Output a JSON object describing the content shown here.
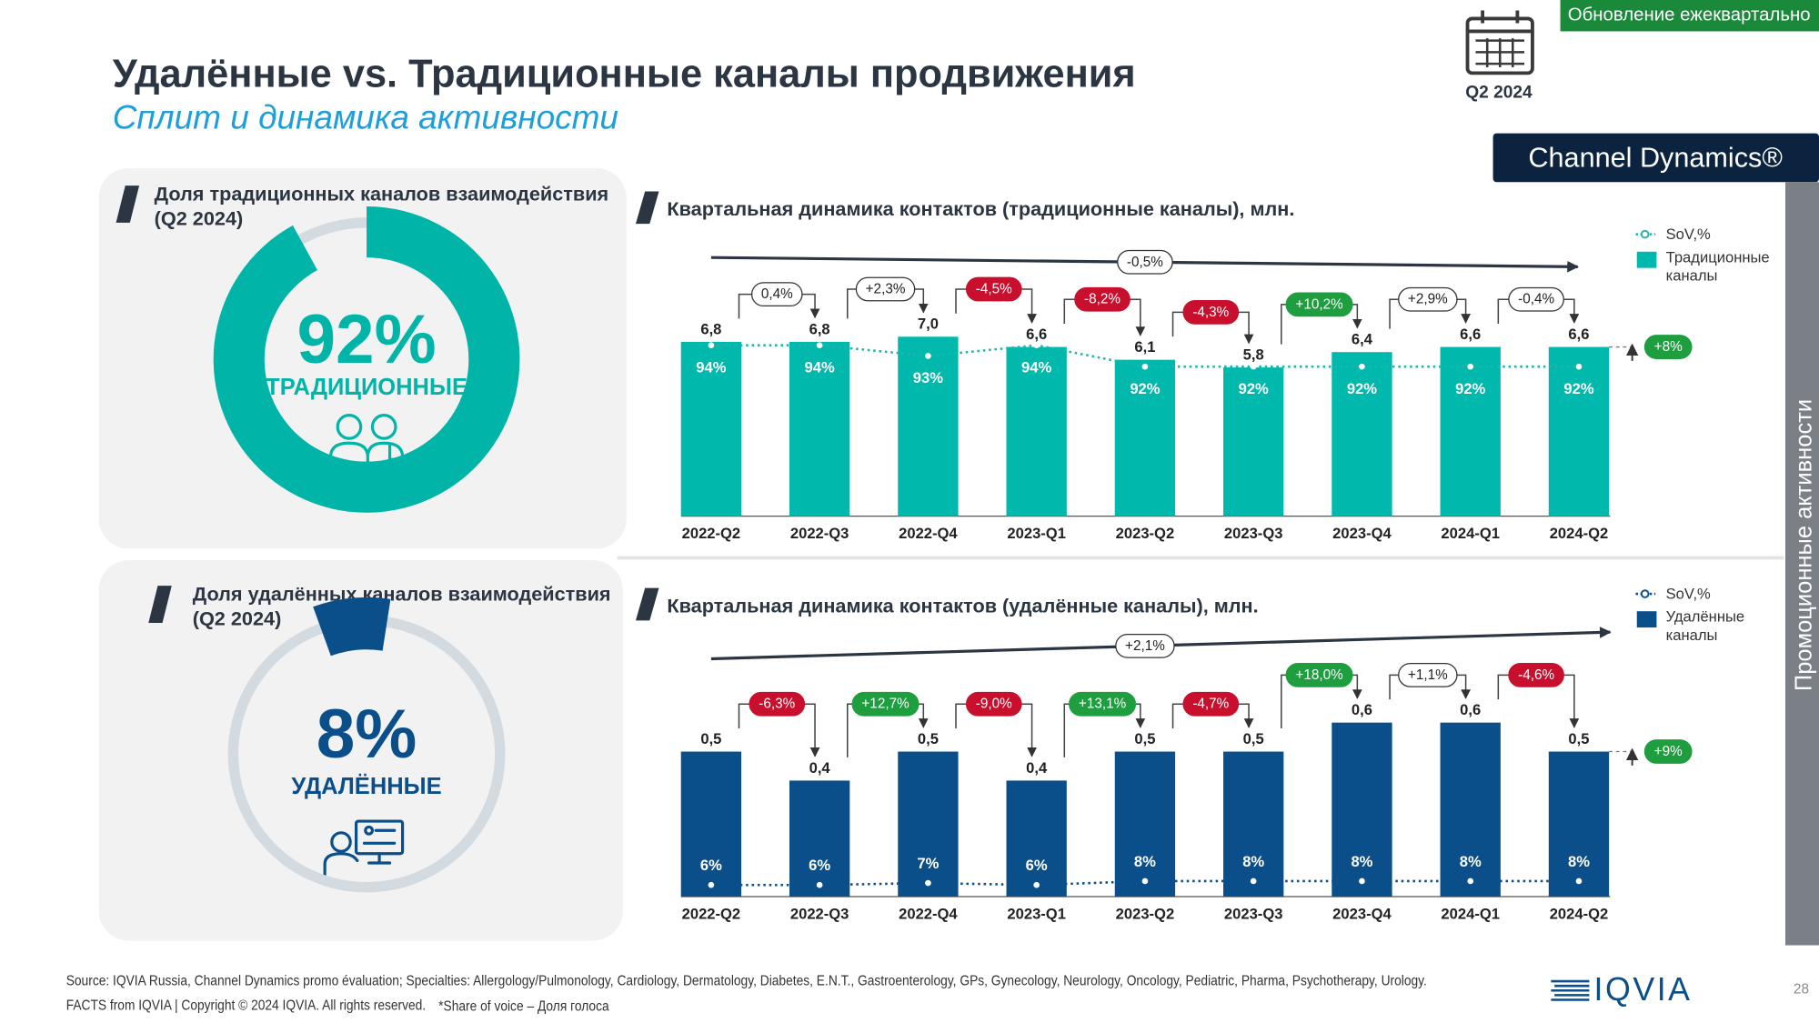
{
  "header": {
    "title": "Удалённые vs. Традиционные каналы продвижения",
    "subtitle": "Сплит и динамика активности",
    "update_badge": "Обновление ежеквартально",
    "period": "Q2 2024",
    "product": "Channel Dynamics®"
  },
  "side_label": "Промоционные активности",
  "chart_data": [
    {
      "type": "donut",
      "title": "Доля традиционных каналов взаимодействия",
      "period": "(Q2 2024)",
      "values": [
        92
      ],
      "value_labels": [
        "92%"
      ],
      "label": "ТРАДИЦИОННЫЕ",
      "color": "#00b5a8",
      "track_color": "#d3dbe1"
    },
    {
      "type": "donut",
      "title": "Доля удалённых каналов взаимодействия",
      "period": "(Q2 2024)",
      "values": [
        8
      ],
      "value_labels": [
        "8%"
      ],
      "label": "УДАЛЁННЫЕ",
      "color": "#0b4f8a",
      "track_color": "#d3dbe1"
    },
    {
      "type": "bar",
      "title": "Квартальная динамика контактов (традиционные каналы), млн.",
      "categories": [
        "2022-Q2",
        "2022-Q3",
        "2022-Q4",
        "2023-Q1",
        "2023-Q2",
        "2023-Q3",
        "2023-Q4",
        "2024-Q1",
        "2024-Q2"
      ],
      "series": [
        {
          "name": "SoV,%",
          "type": "line",
          "axis": "y2",
          "color": "#1fb5a8",
          "values": [
            94,
            94,
            93,
            94,
            92,
            92,
            92,
            92,
            92
          ],
          "value_labels": [
            "94%",
            "94%",
            "93%",
            "94%",
            "92%",
            "92%",
            "92%",
            "92%",
            "92%"
          ]
        },
        {
          "name": "Традиционные каналы",
          "type": "bar",
          "color": "#00b8ac",
          "values": [
            6.8,
            6.8,
            7.0,
            6.6,
            6.1,
            5.8,
            6.4,
            6.6,
            6.6
          ],
          "value_labels": [
            "6,8",
            "6,8",
            "7,0",
            "6,6",
            "6,1",
            "5,8",
            "6,4",
            "6,6",
            "6,6"
          ]
        }
      ],
      "ylim": [
        0,
        10
      ],
      "y2lim": [
        78,
        102
      ],
      "changes": [
        0.4,
        2.3,
        -4.5,
        -8.2,
        -4.3,
        10.2,
        2.9,
        -0.4
      ],
      "change_labels": [
        "0,4%",
        "+2,3%",
        "-4,5%",
        "-8,2%",
        "-4,3%",
        "+10,2%",
        "+2,9%",
        "-0,4%"
      ],
      "change_colors": [
        "#ffffff",
        "#ffffff",
        "#c8102e",
        "#c8102e",
        "#c8102e",
        "#1e9e3e",
        "#ffffff",
        "#ffffff"
      ],
      "trend": {
        "value": -0.5,
        "label": "-0,5%"
      },
      "yoy": {
        "value": 8,
        "label": "+8%",
        "color": "#1e9e3e"
      },
      "sov_label_position": "below"
    },
    {
      "type": "bar",
      "title": "Квартальная динамика контактов (удалённые каналы), млн.",
      "categories": [
        "2022-Q2",
        "2022-Q3",
        "2022-Q4",
        "2023-Q1",
        "2023-Q2",
        "2023-Q3",
        "2023-Q4",
        "2024-Q1",
        "2024-Q2"
      ],
      "series": [
        {
          "name": "SoV,%",
          "type": "line",
          "axis": "y2",
          "color": "#0b4f8a",
          "values": [
            6,
            6,
            7,
            6,
            8,
            8,
            8,
            8,
            8
          ],
          "value_labels": [
            "6%",
            "6%",
            "7%",
            "6%",
            "8%",
            "8%",
            "8%",
            "8%",
            "8%"
          ]
        },
        {
          "name": "Удалённые каналы",
          "type": "bar",
          "color": "#0b4f8a",
          "values": [
            0.5,
            0.4,
            0.5,
            0.4,
            0.5,
            0.5,
            0.6,
            0.6,
            0.5
          ],
          "value_labels": [
            "0,5",
            "0,4",
            "0,5",
            "0,4",
            "0,5",
            "0,5",
            "0,6",
            "0,6",
            "0,5"
          ]
        }
      ],
      "ylim": [
        0,
        1
      ],
      "y2lim": [
        0,
        150
      ],
      "changes": [
        -6.3,
        12.7,
        -9.0,
        13.1,
        -4.7,
        18.0,
        1.1,
        -4.6
      ],
      "change_labels": [
        "-6,3%",
        "+12,7%",
        "-9,0%",
        "+13,1%",
        "-4,7%",
        "+18,0%",
        "+1,1%",
        "-4,6%"
      ],
      "change_colors": [
        "#c8102e",
        "#1e9e3e",
        "#c8102e",
        "#1e9e3e",
        "#c8102e",
        "#1e9e3e",
        "#ffffff",
        "#c8102e"
      ],
      "trend": {
        "value": 2.1,
        "label": "+2,1%"
      },
      "yoy": {
        "value": 9,
        "label": "+9%",
        "color": "#1e9e3e"
      },
      "sov_label_position": "above"
    }
  ],
  "footer": {
    "source": "Source: IQVIA Russia, Channel Dynamics promo évaluation; Specialties: Allergology/Pulmonology, Cardiology, Dermatology, Diabetes, E.N.T., Gastroenterology, GPs, Gynecology, Neurology, Oncology, Pediatric, Pharma, Psychotherapy, Urology.",
    "copyright": "FACTS from IQVIA | Copyright © 2024 IQVIA. All rights reserved.",
    "note": "*Share of voice – Доля голоса",
    "logo": "IQVIA",
    "page": 28
  }
}
